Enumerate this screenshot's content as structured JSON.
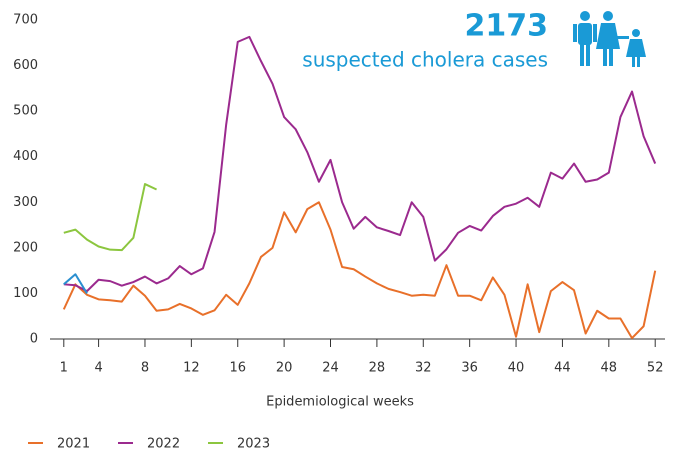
{
  "chart_data": {
    "type": "line",
    "headline_number": 2173,
    "headline_text": "suspected cholera cases",
    "xlabel": "Epidemiological weeks",
    "x": [
      1,
      2,
      3,
      4,
      5,
      6,
      7,
      8,
      9,
      10,
      11,
      12,
      13,
      14,
      15,
      16,
      17,
      18,
      19,
      20,
      21,
      22,
      23,
      24,
      25,
      26,
      27,
      28,
      29,
      30,
      31,
      32,
      33,
      34,
      35,
      36,
      37,
      38,
      39,
      40,
      41,
      42,
      43,
      44,
      45,
      46,
      47,
      48,
      49,
      50,
      51,
      52
    ],
    "xlim": [
      0.5,
      52.5
    ],
    "xticks": [
      1,
      4,
      8,
      12,
      16,
      20,
      24,
      28,
      32,
      36,
      40,
      44,
      48,
      52
    ],
    "ylim": [
      0,
      700
    ],
    "yticks": [
      0,
      100,
      200,
      300,
      400,
      500,
      600,
      700
    ],
    "series": [
      {
        "name": "2021",
        "color": "#e8702a",
        "values": [
          65,
          120,
          97,
          87,
          85,
          82,
          117,
          95,
          62,
          65,
          77,
          67,
          53,
          63,
          97,
          75,
          122,
          180,
          200,
          278,
          234,
          285,
          300,
          240,
          158,
          153,
          137,
          122,
          110,
          103,
          95,
          97,
          95,
          162,
          95,
          95,
          85,
          135,
          97,
          5,
          120,
          15,
          105,
          125,
          107,
          12,
          62,
          45,
          45,
          2,
          28,
          150
        ]
      },
      {
        "name": "2022",
        "color": "#9b2a8e",
        "values": [
          120,
          118,
          105,
          130,
          127,
          117,
          125,
          137,
          122,
          133,
          160,
          142,
          155,
          235,
          470,
          652,
          663,
          610,
          560,
          487,
          460,
          410,
          345,
          393,
          300,
          242,
          268,
          245,
          237,
          228,
          300,
          268,
          172,
          197,
          233,
          248,
          238,
          270,
          290,
          297,
          310,
          290,
          365,
          352,
          385,
          345,
          350,
          365,
          487,
          543,
          445,
          385
        ]
      },
      {
        "name": "2023",
        "color": "#8cc63f",
        "values": [
          233,
          240,
          218,
          203,
          196,
          195,
          222,
          340,
          328,
          null,
          null,
          null,
          null,
          null,
          null,
          null,
          null,
          null,
          null,
          null,
          null,
          null,
          null,
          null,
          null,
          null,
          null,
          null,
          null,
          null,
          null,
          null,
          null,
          null,
          null,
          null,
          null,
          null,
          null,
          null,
          null,
          null,
          null,
          null,
          null,
          null,
          null,
          null,
          null,
          null,
          null,
          null
        ]
      },
      {
        "color": "#2a8fd0",
        "values": [
          120,
          142,
          100,
          null,
          null,
          null,
          null,
          null,
          null,
          null,
          null,
          null,
          null,
          null,
          null,
          null,
          null,
          null,
          null,
          null,
          null,
          null,
          null,
          null,
          null,
          null,
          null,
          null,
          null,
          null,
          null,
          null,
          null,
          null,
          null,
          null,
          null,
          null,
          null,
          null,
          null,
          null,
          null,
          null,
          null,
          null,
          null,
          null,
          null,
          null,
          null,
          null
        ]
      }
    ]
  }
}
